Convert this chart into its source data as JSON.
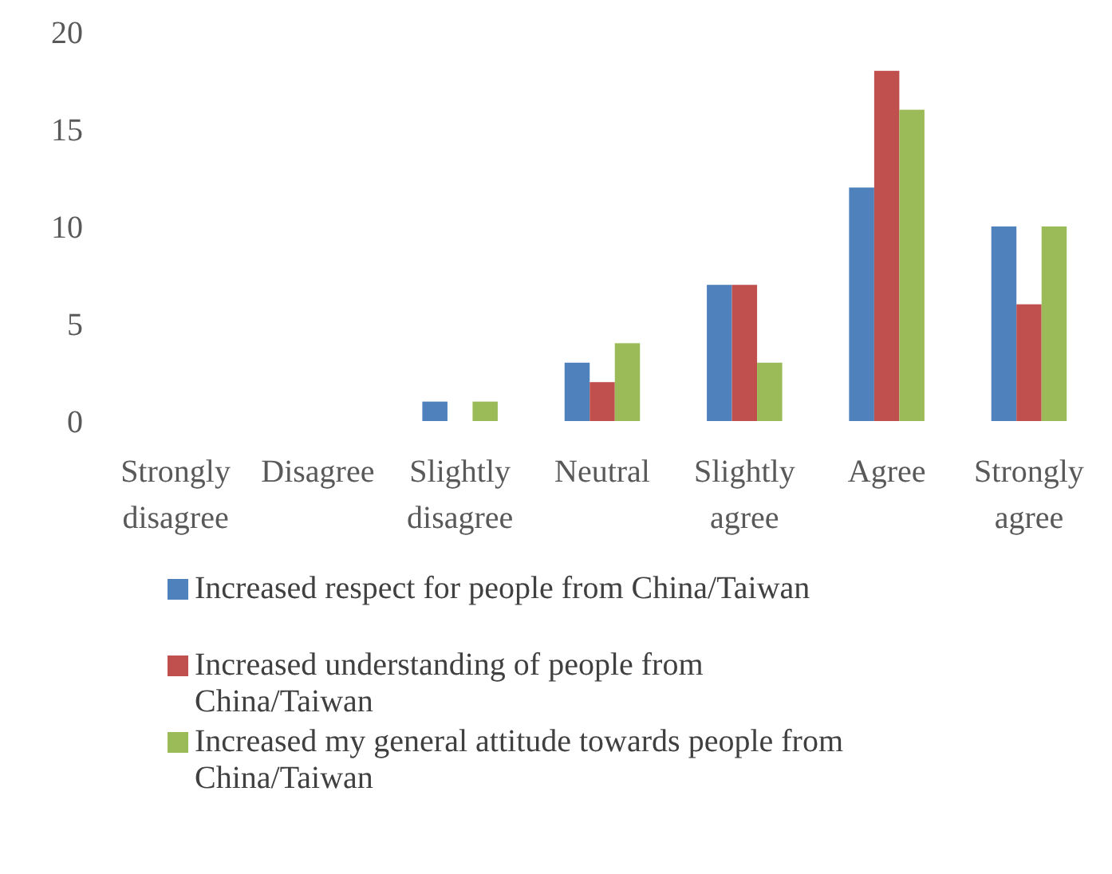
{
  "chart_data": {
    "type": "bar",
    "categories": [
      "Strongly disagree",
      "Disagree",
      "Slightly disagree",
      "Neutral",
      "Slightly agree",
      "Agree",
      "Strongly agree"
    ],
    "series": [
      {
        "name": "Increased respect for people from China/Taiwan",
        "color": "#4f81bd",
        "values": [
          0,
          0,
          1,
          3,
          7,
          12,
          10
        ]
      },
      {
        "name": "Increased understanding of people from China/Taiwan",
        "color": "#c0504d",
        "values": [
          0,
          0,
          0,
          2,
          7,
          18,
          6
        ]
      },
      {
        "name": "Increased my general attitude towards people from China/Taiwan",
        "color": "#9bbb59",
        "values": [
          0,
          0,
          1,
          4,
          3,
          16,
          10
        ]
      }
    ],
    "ylim": [
      0,
      20
    ],
    "yticks": [
      0,
      5,
      10,
      15,
      20
    ],
    "grid": false,
    "legend": "bottom"
  }
}
